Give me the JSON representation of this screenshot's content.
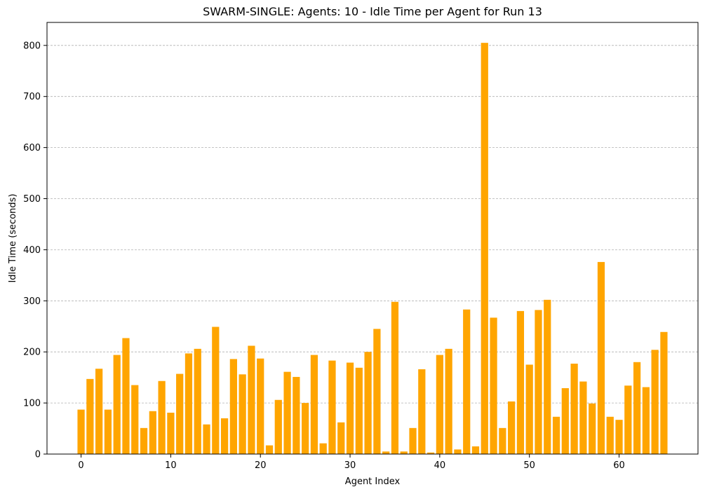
{
  "chart_data": {
    "type": "bar",
    "title": "SWARM-SINGLE: Agents: 10 - Idle Time per Agent for Run 13",
    "xlabel": "Agent Index",
    "ylabel": "Idle Time (seconds)",
    "x": [
      0,
      1,
      2,
      3,
      4,
      5,
      6,
      7,
      8,
      9,
      10,
      11,
      12,
      13,
      14,
      15,
      16,
      17,
      18,
      19,
      20,
      21,
      22,
      23,
      24,
      25,
      26,
      27,
      28,
      29,
      30,
      31,
      32,
      33,
      34,
      35,
      36,
      37,
      38,
      39,
      40,
      41,
      42,
      43,
      44,
      45,
      46,
      47,
      48,
      49,
      50,
      51,
      52,
      53,
      54,
      55,
      56,
      57,
      58,
      59,
      60,
      61,
      62,
      63,
      64,
      65
    ],
    "values": [
      87,
      147,
      167,
      87,
      194,
      227,
      135,
      51,
      84,
      143,
      81,
      157,
      197,
      206,
      58,
      249,
      70,
      186,
      156,
      212,
      187,
      17,
      106,
      161,
      151,
      100,
      194,
      21,
      183,
      62,
      179,
      169,
      200,
      245,
      5,
      298,
      5,
      51,
      166,
      3,
      194,
      206,
      9,
      283,
      15,
      805,
      267,
      51,
      103,
      280,
      175,
      282,
      302,
      73,
      129,
      177,
      142,
      99,
      376,
      73,
      67,
      134,
      180,
      131,
      204,
      239
    ],
    "xlim": [
      -3.8,
      68.8
    ],
    "ylim": [
      0,
      845
    ],
    "xticks": [
      0,
      10,
      20,
      30,
      40,
      50,
      60
    ],
    "yticks": [
      0,
      100,
      200,
      300,
      400,
      500,
      600,
      700,
      800
    ],
    "bar_color": "#ffa500",
    "grid": "y-dashed"
  }
}
